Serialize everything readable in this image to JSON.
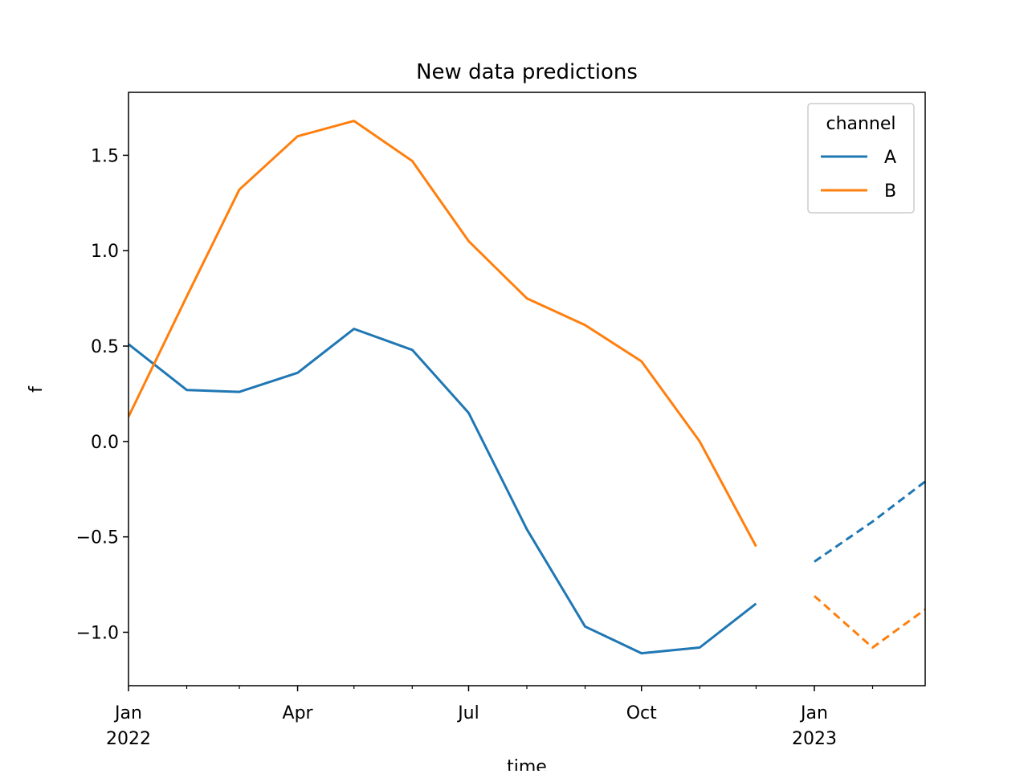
{
  "chart_data": {
    "type": "line",
    "title": "New data predictions",
    "x_label": "time",
    "y_label": "f",
    "x": [
      "2022-01",
      "2022-02",
      "2022-03",
      "2022-04",
      "2022-05",
      "2022-06",
      "2022-07",
      "2022-08",
      "2022-09",
      "2022-10",
      "2022-11",
      "2022-12",
      "2023-01",
      "2023-02",
      "2023-03"
    ],
    "series": [
      {
        "name": "A",
        "color": "#1f77b4",
        "values": [
          0.51,
          0.27,
          0.26,
          0.36,
          0.59,
          0.48,
          0.15,
          -0.46,
          -0.97,
          -1.11,
          -1.08,
          -0.85,
          null,
          null,
          null
        ],
        "forecast": [
          null,
          null,
          null,
          null,
          null,
          null,
          null,
          null,
          null,
          null,
          null,
          null,
          -0.63,
          -0.42,
          -0.21
        ]
      },
      {
        "name": "B",
        "color": "#ff7f0e",
        "values": [
          0.13,
          0.76,
          1.32,
          1.6,
          1.68,
          1.47,
          1.05,
          0.75,
          0.61,
          0.42,
          0.0,
          -0.55,
          null,
          null,
          null
        ],
        "forecast": [
          null,
          null,
          null,
          null,
          null,
          null,
          null,
          null,
          null,
          null,
          null,
          null,
          -0.81,
          -1.08,
          -0.88
        ]
      }
    ],
    "legend_title": "channel",
    "legend_position": "upper-right",
    "xlim": [
      "2022-01",
      "2023-03"
    ],
    "xticks": [
      {
        "value": "2022-01",
        "label": "Jan",
        "year": "2022"
      },
      {
        "value": "2022-04",
        "label": "Apr"
      },
      {
        "value": "2022-07",
        "label": "Jul"
      },
      {
        "value": "2022-10",
        "label": "Oct"
      },
      {
        "value": "2023-01",
        "label": "Jan",
        "year": "2023"
      }
    ],
    "minor_xticks": [
      "2022-02",
      "2022-03",
      "2022-05",
      "2022-06",
      "2022-08",
      "2022-09",
      "2022-11",
      "2022-12",
      "2023-02"
    ],
    "ylim": [
      -1.28,
      1.83
    ],
    "yticks": [
      {
        "value": -1.0,
        "label": "−1.0"
      },
      {
        "value": -0.5,
        "label": "−0.5"
      },
      {
        "value": 0.0,
        "label": "0.0"
      },
      0.5,
      {
        "value": 1.0,
        "label": "1.0"
      },
      1.5
    ]
  }
}
